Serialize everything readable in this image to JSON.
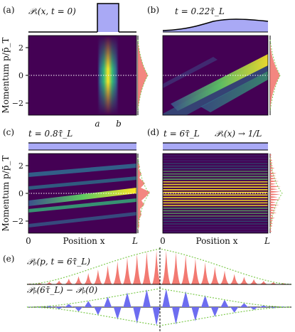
{
  "panels": {
    "a": {
      "letter": "(a)",
      "title": "𝒫ₓ(x, t = 0)"
    },
    "b": {
      "letter": "(b)",
      "title": "t = 0.22τ̄_L"
    },
    "c": {
      "letter": "(c)",
      "title": "t = 0.8τ̄_L"
    },
    "d": {
      "letter": "(d)",
      "title": "t = 6τ̄_L",
      "extra": "𝒫ₓ(x) → 1/L"
    },
    "e": {
      "letter": "(e)",
      "top_title": "𝒫ₚ(p, t = 6τ̄_L)",
      "bottom_title": "𝒫ₚ(6τ̄_L) − 𝒫ₚ(0)"
    }
  },
  "axes": {
    "ylabel": "Momentum p/p̄_T",
    "xlabel": "Position x",
    "yticks": [
      "2",
      "0",
      "−2"
    ],
    "xticks": [
      "0",
      "L"
    ],
    "ab_marks": [
      "a",
      "b"
    ]
  },
  "colors": {
    "viridis_dark": "#440154",
    "viridis_mid": "#21918c",
    "viridis_bright": "#fde725",
    "position_fill": "#a9a9f5",
    "momentum_fill": "#f27a72",
    "difference_fill": "#6d6df0",
    "guide_green": "#7fcb4f"
  }
}
